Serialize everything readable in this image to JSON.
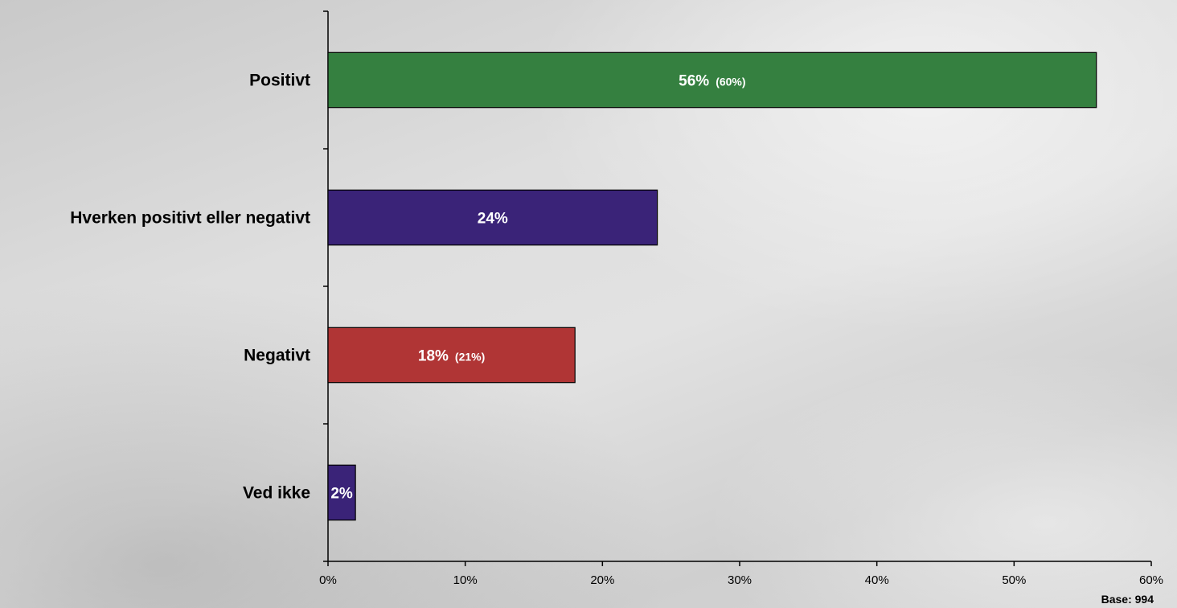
{
  "chart_data": {
    "type": "bar",
    "orientation": "horizontal",
    "categories": [
      "Positivt",
      "Hverken positivt eller negativt",
      "Negativt",
      "Ved ikke"
    ],
    "values": [
      56,
      24,
      18,
      2
    ],
    "value_labels": [
      "56%",
      "24%",
      "18%",
      "2%"
    ],
    "secondary_labels": [
      "(60%)",
      "",
      "(21%)",
      ""
    ],
    "colors": [
      "#358040",
      "#3a2378",
      "#b03535",
      "#3a2378"
    ],
    "xlim": [
      0,
      60
    ],
    "xticks": [
      0,
      10,
      20,
      30,
      40,
      50,
      60
    ],
    "xtick_labels": [
      "0%",
      "10%",
      "20%",
      "30%",
      "40%",
      "50%",
      "60%"
    ],
    "title": "",
    "xlabel": "",
    "ylabel": "",
    "grid": false,
    "legend": "none"
  },
  "base_note": "Base: 994"
}
